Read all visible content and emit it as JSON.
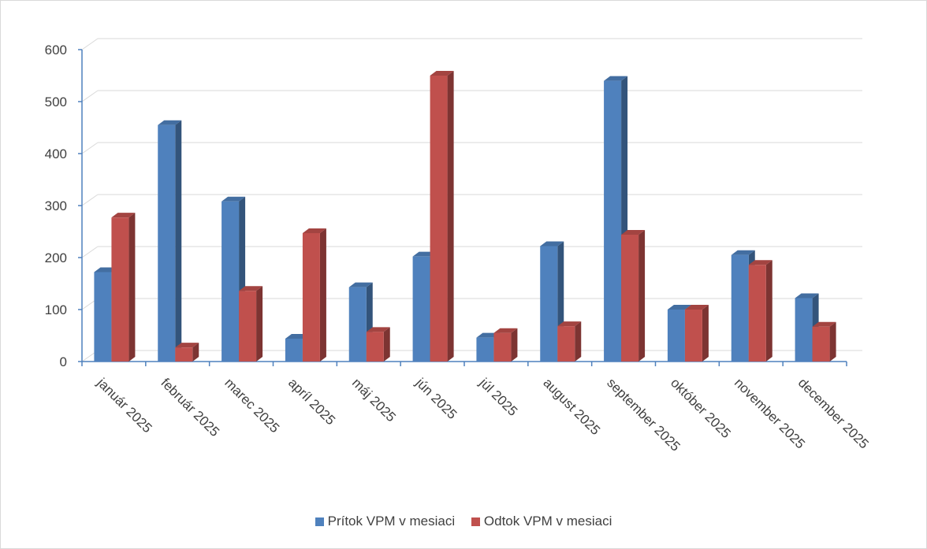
{
  "chart_data": {
    "type": "bar",
    "style": "3d-clustered-column",
    "categories": [
      "január 2025",
      "február 2025",
      "marec 2025",
      "apríl 2025",
      "máj 2025",
      "jún 2025",
      "júl 2025",
      "august 2025",
      "september 2025",
      "október 2025",
      "november 2025",
      "december 2025"
    ],
    "series": [
      {
        "name": "Prítok VPM v mesiaci",
        "color": "#4f81bd",
        "values": [
          172,
          455,
          308,
          44,
          143,
          202,
          46,
          222,
          540,
          100,
          205,
          122
        ]
      },
      {
        "name": "Odtok VPM v mesiaci",
        "color": "#c0504d",
        "values": [
          277,
          27,
          136,
          247,
          57,
          550,
          55,
          68,
          244,
          100,
          186,
          67
        ]
      }
    ],
    "ylim": [
      0,
      600
    ],
    "yticks": [
      0,
      100,
      200,
      300,
      400,
      500,
      600
    ],
    "grid": true,
    "legend_position": "bottom"
  }
}
